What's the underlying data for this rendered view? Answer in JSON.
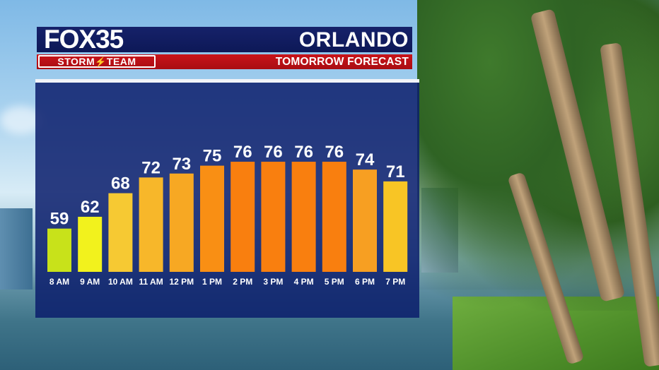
{
  "branding": {
    "logo_fox": "FOX",
    "logo_number": "35",
    "team": "STORM",
    "team_suffix": "TEAM"
  },
  "header": {
    "city": "ORLANDO",
    "subtitle": "TOMORROW FORECAST"
  },
  "chart_data": {
    "type": "bar",
    "categories": [
      "8 AM",
      "9 AM",
      "10 AM",
      "11 AM",
      "12 PM",
      "1 PM",
      "2 PM",
      "3 PM",
      "4 PM",
      "5 PM",
      "6 PM",
      "7 PM"
    ],
    "values": [
      59,
      62,
      68,
      72,
      73,
      75,
      76,
      76,
      76,
      76,
      74,
      71
    ],
    "colors": [
      "#c8e21a",
      "#f2f21d",
      "#f6c933",
      "#f7b72a",
      "#f7a823",
      "#f98f14",
      "#f97f0f",
      "#f97f0f",
      "#f97f0f",
      "#f97f0f",
      "#f79f22",
      "#f8c525"
    ],
    "title": "",
    "xlabel": "",
    "ylabel": "",
    "grid": false,
    "data_labels": true
  }
}
